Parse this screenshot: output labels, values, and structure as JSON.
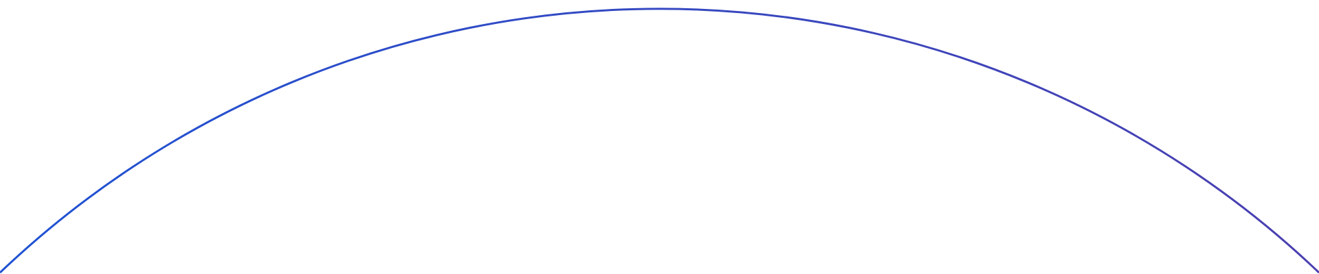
{
  "colors": {
    "background": "#ffffff",
    "arc_start": "#1f52d3",
    "arc_end": "#4a3fb0"
  }
}
